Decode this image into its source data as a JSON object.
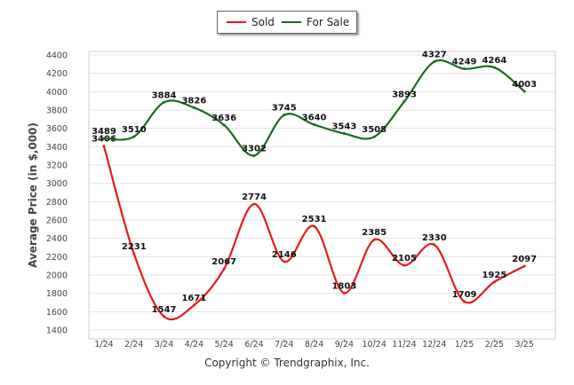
{
  "chart_data": {
    "type": "line",
    "categories": [
      "1/24",
      "2/24",
      "3/24",
      "4/24",
      "5/24",
      "6/24",
      "7/24",
      "8/24",
      "9/24",
      "10/24",
      "11/24",
      "12/24",
      "1/25",
      "2/25",
      "3/25"
    ],
    "series": [
      {
        "name": "Sold",
        "color": "#e41a1c",
        "values": [
          3406,
          2231,
          1547,
          1671,
          2067,
          2774,
          2146,
          2531,
          1803,
          2385,
          2105,
          2330,
          1709,
          1925,
          2097
        ]
      },
      {
        "name": "For Sale",
        "color": "#1a6b1a",
        "values": [
          3489,
          3510,
          3884,
          3826,
          3636,
          3302,
          3745,
          3640,
          3543,
          3508,
          3893,
          4327,
          4249,
          4264,
          4003
        ]
      }
    ],
    "ylabel": "Average Price (in $,000)",
    "ylim": [
      1400,
      4400
    ],
    "yticks": [
      1400,
      1600,
      1800,
      2000,
      2200,
      2400,
      2600,
      2800,
      3000,
      3200,
      3400,
      3600,
      3800,
      4000,
      4200,
      4400
    ],
    "grid": true,
    "legend_position": "top-center"
  },
  "legend": {
    "sold": "Sold",
    "for_sale": "For Sale"
  },
  "footer": {
    "copyright": "Copyright © Trendgraphix, Inc."
  }
}
